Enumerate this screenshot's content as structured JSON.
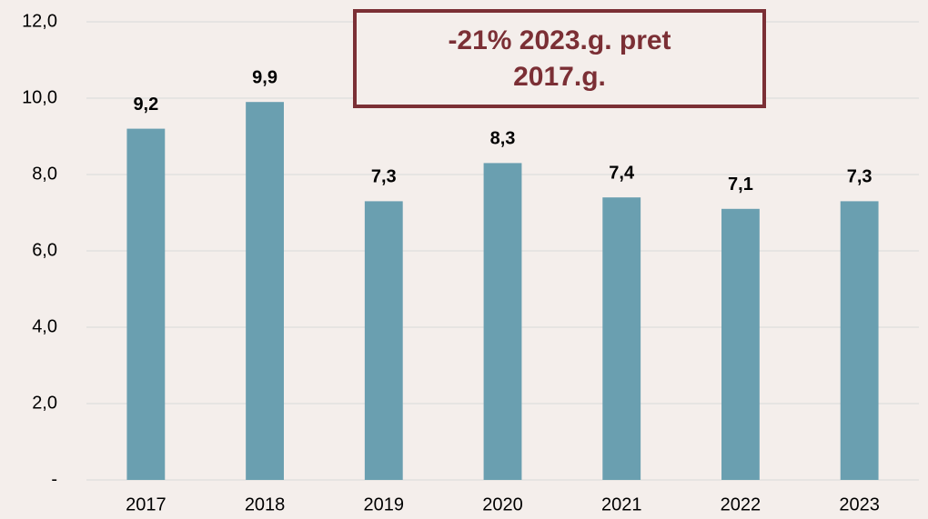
{
  "chart_data": {
    "type": "bar",
    "categories": [
      "2017",
      "2018",
      "2019",
      "2020",
      "2021",
      "2022",
      "2023"
    ],
    "values": [
      9.2,
      9.9,
      7.3,
      8.3,
      7.4,
      7.1,
      7.3
    ],
    "value_labels": [
      "9,2",
      "9,9",
      "7,3",
      "8,3",
      "7,4",
      "7,1",
      "7,3"
    ],
    "color": "#6a9fb0",
    "ylim": [
      0,
      12
    ],
    "yticks": [
      {
        "value": 0,
        "label": "-"
      },
      {
        "value": 2,
        "label": "2,0"
      },
      {
        "value": 4,
        "label": "4,0"
      },
      {
        "value": 6,
        "label": "6,0"
      },
      {
        "value": 8,
        "label": "8,0"
      },
      {
        "value": 10,
        "label": "10,0"
      },
      {
        "value": 12,
        "label": "12,0"
      }
    ],
    "grid": true,
    "annotation": [
      "-21% 2023.g. pret",
      "2017.g."
    ]
  }
}
